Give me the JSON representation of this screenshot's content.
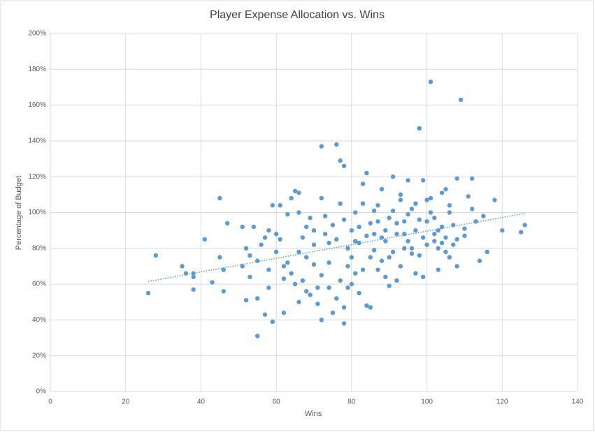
{
  "chart_data": {
    "type": "scatter",
    "title": "Player Expense Allocation vs. Wins",
    "x_label": "Wins",
    "y_label": "Percentage of Budget",
    "color": "#5b9bd5",
    "grid": true,
    "xlim": [
      0,
      140
    ],
    "xticks": [
      0,
      20,
      40,
      60,
      80,
      100,
      120,
      140
    ],
    "ylim": [
      0,
      200
    ],
    "yticks": [
      {
        "value": 0,
        "label": "0%"
      },
      {
        "value": 20,
        "label": "20%"
      },
      {
        "value": 40,
        "label": "40%"
      },
      {
        "value": 60,
        "label": "60%"
      },
      {
        "value": 80,
        "label": "80%"
      },
      {
        "value": 100,
        "label": "100%"
      },
      {
        "value": 120,
        "label": "120%"
      },
      {
        "value": 140,
        "label": "140%"
      },
      {
        "value": 160,
        "label": "160%"
      },
      {
        "value": 180,
        "label": "180%"
      },
      {
        "value": 200,
        "label": "200%"
      }
    ],
    "trendline": {
      "x": [
        26,
        126
      ],
      "values": [
        61.5,
        99.5
      ]
    },
    "x": [
      26,
      28,
      35,
      36,
      38,
      38,
      38,
      41,
      43,
      45,
      45,
      46,
      46,
      47,
      51,
      51,
      52,
      52,
      53,
      54,
      55,
      55,
      55,
      57,
      58,
      58,
      59,
      59,
      60,
      61,
      62,
      62,
      63,
      64,
      65,
      66,
      66,
      67,
      68,
      69,
      70,
      70,
      71,
      72,
      72,
      72,
      73,
      74,
      75,
      76,
      77,
      78,
      78,
      78,
      79,
      80,
      80,
      81,
      82,
      83,
      84,
      84,
      85,
      85,
      86,
      87,
      88,
      89,
      90,
      91,
      92,
      93,
      94,
      95,
      96,
      97,
      98,
      99,
      100,
      101,
      101,
      102,
      103,
      104,
      105,
      106,
      107,
      108,
      109,
      110,
      111,
      112,
      113,
      114,
      115,
      116,
      118,
      120,
      125,
      126,
      60,
      62,
      64,
      66,
      68,
      70,
      72,
      74,
      75,
      76,
      77,
      78,
      79,
      80,
      81,
      82,
      83,
      84,
      86,
      87,
      88,
      89,
      90,
      91,
      92,
      93,
      94,
      95,
      96,
      97,
      98,
      99,
      100,
      102,
      103,
      104,
      105,
      106,
      107,
      108,
      56,
      58,
      65,
      67,
      69,
      71,
      73,
      76,
      79,
      81,
      83,
      85,
      87,
      89,
      91,
      93,
      95,
      97,
      99,
      101,
      103,
      105,
      110,
      112,
      53,
      57,
      63,
      61,
      66,
      68,
      74,
      77,
      82,
      86,
      88,
      90,
      92,
      94,
      96,
      98,
      100,
      102,
      104,
      106,
      108
    ],
    "values": [
      55,
      76,
      70,
      66,
      57,
      64,
      66,
      85,
      61,
      108,
      75,
      56,
      68,
      94,
      92,
      70,
      51,
      80,
      64,
      92,
      31,
      52,
      73,
      43,
      58,
      90,
      39,
      104,
      78,
      104,
      44,
      63,
      99,
      108,
      112,
      50,
      111,
      62,
      92,
      54,
      71,
      82,
      49,
      137,
      40,
      108,
      98,
      83,
      44,
      138,
      129,
      126,
      38,
      47,
      70,
      60,
      90,
      100,
      55,
      116,
      122,
      48,
      47,
      75,
      101,
      68,
      113,
      90,
      59,
      120,
      62,
      107,
      80,
      118,
      77,
      66,
      147,
      118,
      95,
      173,
      108,
      88,
      68,
      111,
      78,
      100,
      82,
      119,
      163,
      91,
      109,
      119,
      95,
      73,
      98,
      78,
      107,
      90,
      89,
      93,
      88,
      70,
      66,
      78,
      75,
      90,
      65,
      72,
      93,
      85,
      62,
      96,
      80,
      75,
      84,
      92,
      68,
      87,
      79,
      95,
      73,
      84,
      97,
      78,
      88,
      70,
      95,
      84,
      102,
      90,
      76,
      86,
      82,
      97,
      80,
      92,
      86,
      75,
      93,
      85,
      82,
      68,
      60,
      86,
      97,
      58,
      88,
      52,
      58,
      66,
      105,
      94,
      104,
      64,
      101,
      110,
      99,
      105,
      64,
      100,
      90,
      113,
      87,
      102,
      76,
      86,
      72,
      85,
      100,
      56,
      58,
      105,
      83,
      88,
      86,
      75,
      94,
      88,
      80,
      96,
      107,
      84,
      83,
      104,
      70
    ]
  }
}
